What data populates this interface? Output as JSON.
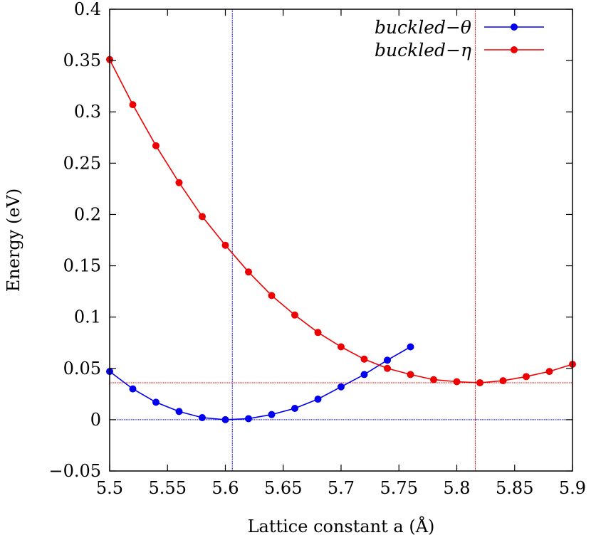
{
  "chart_data": {
    "type": "line",
    "xlabel": "Lattice constant a (Å)",
    "ylabel": "Energy (eV)",
    "xlim": [
      5.5,
      5.9
    ],
    "ylim": [
      -0.05,
      0.4
    ],
    "xticks": [
      "5.5",
      "5.55",
      "5.6",
      "5.65",
      "5.7",
      "5.75",
      "5.8",
      "5.85",
      "5.9"
    ],
    "yticks": [
      "−0.05",
      "0",
      "0.05",
      "0.1",
      "0.15",
      "0.2",
      "0.25",
      "0.3",
      "0.35",
      "0.4"
    ],
    "legend_position": "top-right",
    "grid": false,
    "series": [
      {
        "name": "buckled−θ",
        "color": "#0000ee",
        "x": [
          5.5,
          5.52,
          5.54,
          5.56,
          5.58,
          5.6,
          5.62,
          5.64,
          5.66,
          5.68,
          5.7,
          5.72,
          5.74,
          5.76
        ],
        "y": [
          0.047,
          0.03,
          0.017,
          0.008,
          0.002,
          0.0,
          0.001,
          0.005,
          0.011,
          0.02,
          0.032,
          0.044,
          0.058,
          0.071
        ]
      },
      {
        "name": "buckled−η",
        "color": "#ee0000",
        "x": [
          5.5,
          5.52,
          5.54,
          5.56,
          5.58,
          5.6,
          5.62,
          5.64,
          5.66,
          5.68,
          5.7,
          5.72,
          5.74,
          5.76,
          5.78,
          5.8,
          5.82,
          5.84,
          5.86,
          5.88,
          5.9
        ],
        "y": [
          0.351,
          0.307,
          0.267,
          0.231,
          0.198,
          0.17,
          0.144,
          0.121,
          0.102,
          0.085,
          0.071,
          0.059,
          0.05,
          0.044,
          0.039,
          0.037,
          0.036,
          0.038,
          0.042,
          0.047,
          0.054
        ]
      }
    ],
    "reference_lines": [
      {
        "orientation": "vertical",
        "value": 5.606,
        "color": "#0000ee"
      },
      {
        "orientation": "horizontal",
        "value": 0.0,
        "color": "#0000ee"
      },
      {
        "orientation": "vertical",
        "value": 5.816,
        "color": "#ee0000"
      },
      {
        "orientation": "horizontal",
        "value": 0.036,
        "color": "#ee0000"
      }
    ]
  }
}
